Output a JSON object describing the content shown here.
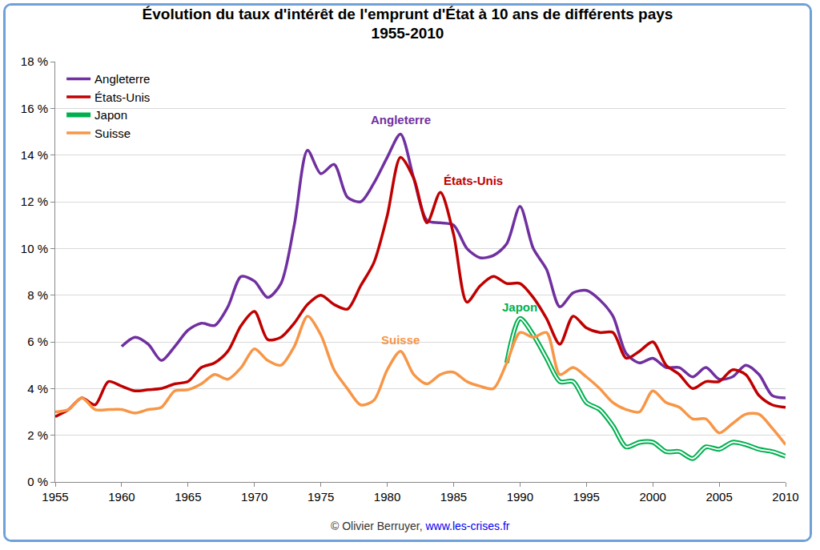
{
  "chart_data": {
    "type": "line",
    "title": "Évolution du taux d'intérêt de l'emprunt d'État à 10 ans de différents pays",
    "subtitle": "1955-2010",
    "credit": "© Olivier Berruyer,",
    "credit_link": "www.les-crises.fr",
    "x": [
      1955,
      1956,
      1957,
      1958,
      1959,
      1960,
      1961,
      1962,
      1963,
      1964,
      1965,
      1966,
      1967,
      1968,
      1969,
      1970,
      1971,
      1972,
      1973,
      1974,
      1975,
      1976,
      1977,
      1978,
      1979,
      1980,
      1981,
      1982,
      1983,
      1984,
      1985,
      1986,
      1987,
      1988,
      1989,
      1990,
      1991,
      1992,
      1993,
      1994,
      1995,
      1996,
      1997,
      1998,
      1999,
      2000,
      2001,
      2002,
      2003,
      2004,
      2005,
      2006,
      2007,
      2008,
      2009,
      2010
    ],
    "series": [
      {
        "name": "Angleterre",
        "color": "#7030a0",
        "values": [
          null,
          null,
          null,
          null,
          null,
          5.8,
          6.2,
          5.9,
          5.2,
          5.8,
          6.5,
          6.8,
          6.7,
          7.5,
          8.8,
          8.6,
          7.9,
          8.5,
          11.0,
          14.2,
          13.2,
          13.6,
          12.2,
          12.0,
          12.8,
          13.9,
          14.9,
          13.0,
          11.2,
          11.1,
          11.0,
          10.0,
          9.6,
          9.7,
          10.2,
          11.8,
          10.0,
          9.1,
          7.5,
          8.1,
          8.2,
          7.8,
          7.1,
          5.5,
          5.1,
          5.3,
          4.9,
          4.9,
          4.5,
          4.9,
          4.4,
          4.5,
          5.0,
          4.6,
          3.7,
          3.6
        ]
      },
      {
        "name": "États-Unis",
        "color": "#c00000",
        "values": [
          2.8,
          3.1,
          3.6,
          3.3,
          4.3,
          4.1,
          3.9,
          3.95,
          4.0,
          4.2,
          4.3,
          4.9,
          5.1,
          5.6,
          6.7,
          7.3,
          6.1,
          6.2,
          6.8,
          7.6,
          8.0,
          7.6,
          7.4,
          8.4,
          9.4,
          11.4,
          13.9,
          13.0,
          11.1,
          12.4,
          10.6,
          7.7,
          8.4,
          8.8,
          8.5,
          8.5,
          7.9,
          7.0,
          5.9,
          7.1,
          6.6,
          6.4,
          6.4,
          5.3,
          5.6,
          6.0,
          5.0,
          4.6,
          4.0,
          4.3,
          4.3,
          4.8,
          4.6,
          3.7,
          3.3,
          3.2
        ]
      },
      {
        "name": "Japon",
        "color": "#00b050",
        "line_style": "double",
        "values": [
          null,
          null,
          null,
          null,
          null,
          null,
          null,
          null,
          null,
          null,
          null,
          null,
          null,
          null,
          null,
          null,
          null,
          null,
          null,
          null,
          null,
          null,
          null,
          null,
          null,
          null,
          null,
          null,
          null,
          null,
          null,
          null,
          null,
          null,
          5.1,
          7.0,
          6.3,
          5.3,
          4.3,
          4.3,
          3.4,
          3.1,
          2.4,
          1.5,
          1.7,
          1.7,
          1.3,
          1.3,
          1.0,
          1.5,
          1.4,
          1.7,
          1.6,
          1.4,
          1.3,
          1.1
        ]
      },
      {
        "name": "Suisse",
        "color": "#f79646",
        "values": [
          3.0,
          3.1,
          3.6,
          3.1,
          3.1,
          3.1,
          2.95,
          3.1,
          3.2,
          3.9,
          3.95,
          4.2,
          4.6,
          4.4,
          4.9,
          5.7,
          5.2,
          5.0,
          5.8,
          7.1,
          6.3,
          4.8,
          4.0,
          3.3,
          3.5,
          4.8,
          5.6,
          4.6,
          4.2,
          4.6,
          4.7,
          4.3,
          4.1,
          4.0,
          5.1,
          6.4,
          6.2,
          6.4,
          4.6,
          4.9,
          4.5,
          4.0,
          3.4,
          3.1,
          3.0,
          3.9,
          3.4,
          3.2,
          2.7,
          2.7,
          2.1,
          2.5,
          2.9,
          2.9,
          2.3,
          1.6
        ]
      }
    ],
    "annotations": [
      {
        "text": "Angleterre",
        "x": 1981,
        "y": 15.5
      },
      {
        "text": "États-Unis",
        "x": 1986.5,
        "y": 12.9
      },
      {
        "text": "Japon",
        "x": 1990,
        "y": 7.5
      },
      {
        "text": "Suisse",
        "x": 1981,
        "y": 6.1
      }
    ],
    "xlim": [
      1955,
      2010
    ],
    "xticks": [
      1955,
      1960,
      1965,
      1970,
      1975,
      1980,
      1985,
      1990,
      1995,
      2000,
      2005,
      2010
    ],
    "ylim": [
      0,
      18
    ],
    "yticks": [
      {
        "value": 0,
        "label": "0 %"
      },
      {
        "value": 2,
        "label": "2 %"
      },
      {
        "value": 4,
        "label": "4 %"
      },
      {
        "value": 6,
        "label": "6 %"
      },
      {
        "value": 8,
        "label": "8 %"
      },
      {
        "value": 10,
        "label": "10 %"
      },
      {
        "value": 12,
        "label": "12 %"
      },
      {
        "value": 14,
        "label": "14 %"
      },
      {
        "value": 16,
        "label": "16 %"
      },
      {
        "value": 18,
        "label": "18 %"
      }
    ],
    "grid": true,
    "legend": "top-left"
  }
}
